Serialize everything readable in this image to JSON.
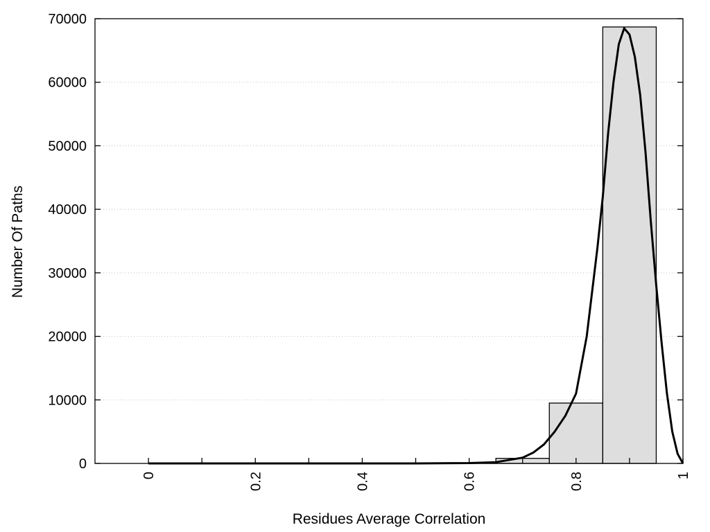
{
  "chart_data": {
    "type": "bar",
    "title": "",
    "xlabel": "Residues Average Correlation",
    "ylabel": "Number Of Paths",
    "xlim": [
      -0.1,
      1.0
    ],
    "ylim": [
      0,
      70000
    ],
    "grid": "horizontal dotted",
    "x_ticks": [
      0,
      0.2,
      0.4,
      0.6,
      0.8,
      1
    ],
    "x_tick_labels": [
      "0",
      "0.2",
      "0.4",
      "0.6",
      "0.8",
      "1"
    ],
    "x_minor_ticks": [
      0.1,
      0.3,
      0.5,
      0.7,
      0.9
    ],
    "y_ticks": [
      0,
      10000,
      20000,
      30000,
      40000,
      50000,
      60000,
      70000
    ],
    "y_tick_labels": [
      "0",
      "10000",
      "20000",
      "30000",
      "40000",
      "50000",
      "60000",
      "70000"
    ],
    "bins": [
      {
        "center": 0.0,
        "width": 0.1,
        "value": 0
      },
      {
        "center": 0.1,
        "width": 0.1,
        "value": 0
      },
      {
        "center": 0.2,
        "width": 0.1,
        "value": 0
      },
      {
        "center": 0.3,
        "width": 0.1,
        "value": 0
      },
      {
        "center": 0.4,
        "width": 0.1,
        "value": 0
      },
      {
        "center": 0.5,
        "width": 0.1,
        "value": 0
      },
      {
        "center": 0.6,
        "width": 0.1,
        "value": 100
      },
      {
        "center": 0.7,
        "width": 0.1,
        "value": 800
      },
      {
        "center": 0.8,
        "width": 0.1,
        "value": 9500
      },
      {
        "center": 0.9,
        "width": 0.1,
        "value": 68700
      }
    ],
    "fit_curve": {
      "x": [
        0.0,
        0.1,
        0.2,
        0.3,
        0.4,
        0.5,
        0.6,
        0.65,
        0.7,
        0.72,
        0.74,
        0.76,
        0.78,
        0.8,
        0.82,
        0.84,
        0.85,
        0.86,
        0.87,
        0.88,
        0.89,
        0.9,
        0.91,
        0.92,
        0.93,
        0.94,
        0.95,
        0.96,
        0.97,
        0.98,
        0.99,
        1.0
      ],
      "y": [
        0,
        0,
        0,
        0,
        0,
        0,
        50,
        200,
        900,
        1700,
        3000,
        5000,
        7500,
        11000,
        20000,
        34000,
        42000,
        52000,
        60000,
        66000,
        68500,
        67500,
        64000,
        58000,
        49000,
        38000,
        28000,
        19000,
        11000,
        5000,
        1500,
        0
      ]
    },
    "colors": {
      "bar_fill": "#dedede",
      "bar_stroke": "#000000",
      "curve": "#000000",
      "grid": "#bfbfbf",
      "frame": "#000000"
    }
  }
}
